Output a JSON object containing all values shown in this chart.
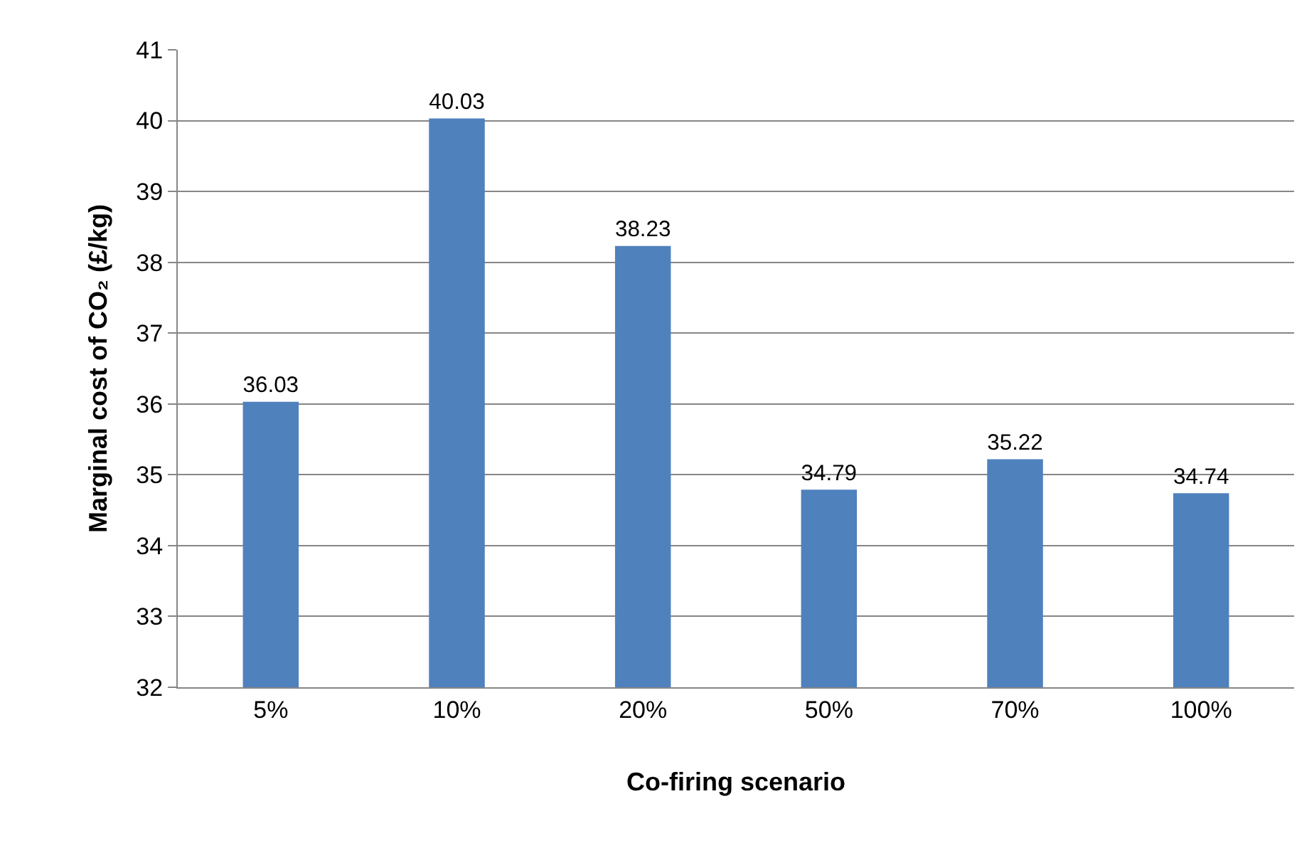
{
  "chart_data": {
    "type": "bar",
    "xlabel": "Co-firing scenario",
    "ylabel": "Marginal cost of CO₂ (£/kg)",
    "categories": [
      "5%",
      "10%",
      "20%",
      "50%",
      "70%",
      "100%"
    ],
    "values": [
      36.03,
      40.03,
      38.23,
      34.79,
      35.22,
      34.74
    ],
    "color": "#4f81bd",
    "ylim": [
      32,
      41
    ],
    "yticks": [
      32,
      33,
      34,
      35,
      36,
      37,
      38,
      39,
      40,
      41
    ],
    "grid": "y",
    "legend": false,
    "data_labels": true
  }
}
